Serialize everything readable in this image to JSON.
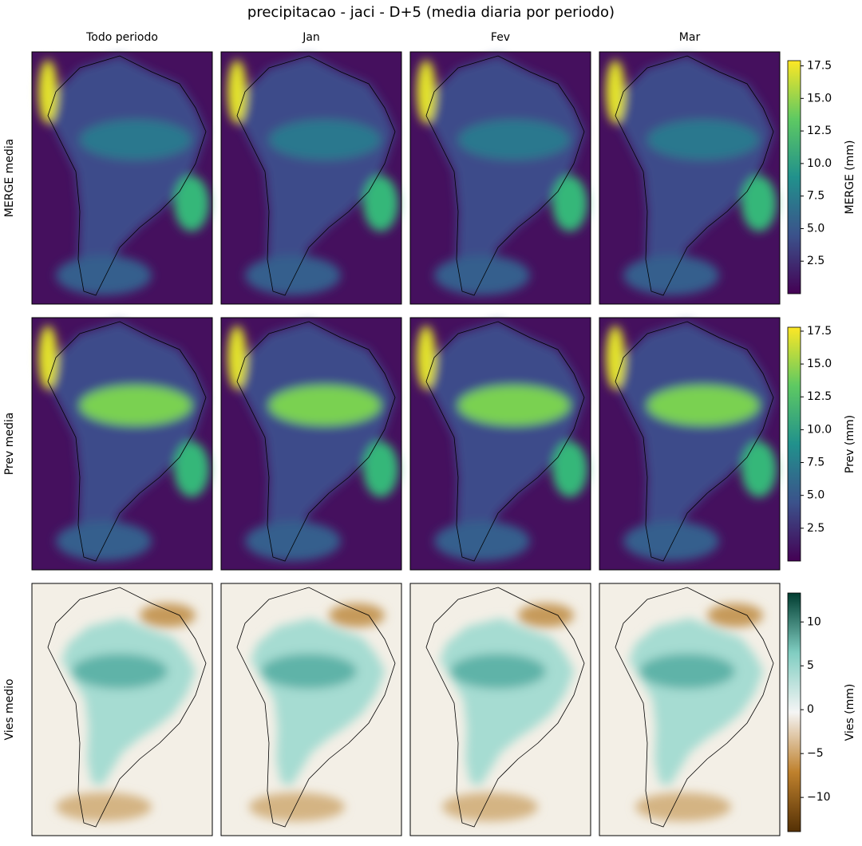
{
  "title": "precipitacao - jaci - D+5 (media diaria por periodo)",
  "columns": [
    "Todo periodo",
    "Jan",
    "Fev",
    "Mar"
  ],
  "rows": [
    {
      "label": "MERGE media",
      "colorbar": {
        "label": "MERGE (mm)",
        "colormap": "viridis",
        "lim": [
          0,
          17.9
        ],
        "ticks": [
          2.5,
          {
            "value": 5,
            "label": "5.0"
          },
          7.5,
          {
            "value": 10,
            "label": "10.0"
          },
          12.5,
          {
            "value": 15,
            "label": "15.0"
          },
          17.5
        ]
      }
    },
    {
      "label": "Prev media",
      "colorbar": {
        "label": "Prev (mm)",
        "colormap": "viridis",
        "lim": [
          0,
          17.8
        ],
        "ticks": [
          2.5,
          {
            "value": 5,
            "label": "5.0"
          },
          7.5,
          {
            "value": 10,
            "label": "10.0"
          },
          12.5,
          {
            "value": 15,
            "label": "15.0"
          },
          17.5
        ]
      }
    },
    {
      "label": "Vies medio",
      "colorbar": {
        "label": "Vies (mm)",
        "colormap": "BrBG",
        "lim": [
          -13.9,
          13.3
        ],
        "ticks": [
          {
            "value": -10,
            "label": "−10"
          },
          {
            "value": -5,
            "label": "−5"
          },
          0,
          5,
          10
        ]
      }
    }
  ]
}
